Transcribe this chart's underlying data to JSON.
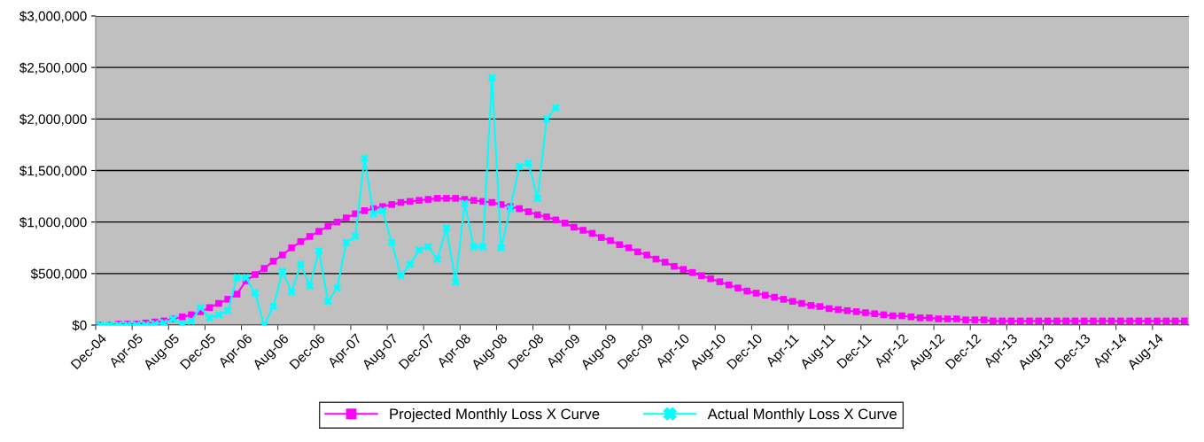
{
  "chart_data": {
    "type": "line",
    "categories": [
      "Dec-04",
      null,
      null,
      null,
      "Apr-05",
      null,
      null,
      null,
      "Aug-05",
      null,
      null,
      null,
      "Dec-05",
      null,
      null,
      null,
      "Apr-06",
      null,
      null,
      null,
      "Aug-06",
      null,
      null,
      null,
      "Dec-06",
      null,
      null,
      null,
      "Apr-07",
      null,
      null,
      null,
      "Aug-07",
      null,
      null,
      null,
      "Dec-07",
      null,
      null,
      null,
      "Apr-08",
      null,
      null,
      null,
      "Aug-08",
      null,
      null,
      null,
      "Dec-08",
      null,
      null,
      null,
      "Apr-09",
      null,
      null,
      null,
      "Aug-09",
      null,
      null,
      null,
      "Dec-09",
      null,
      null,
      null,
      "Apr-10",
      null,
      null,
      null,
      "Aug-10",
      null,
      null,
      null,
      "Dec-10",
      null,
      null,
      null,
      "Apr-11",
      null,
      null,
      null,
      "Aug-11",
      null,
      null,
      null,
      "Dec-11",
      null,
      null,
      null,
      "Apr-12",
      null,
      null,
      null,
      "Aug-12",
      null,
      null,
      null,
      "Dec-12",
      null,
      null,
      null,
      "Apr-13",
      null,
      null,
      null,
      "Aug-13",
      null,
      null,
      null,
      "Dec-13",
      null,
      null,
      null,
      "Apr-14",
      null,
      null,
      null,
      "Aug-14",
      null,
      null,
      null
    ],
    "series": [
      {
        "name": "Projected Monthly Loss X Curve",
        "color": "#ff00ff",
        "marker": "square",
        "values": [
          0,
          0,
          10000,
          10000,
          10000,
          20000,
          30000,
          40000,
          60000,
          80000,
          100000,
          130000,
          170000,
          210000,
          250000,
          300000,
          430000,
          490000,
          550000,
          620000,
          680000,
          750000,
          810000,
          860000,
          910000,
          960000,
          1000000,
          1040000,
          1080000,
          1110000,
          1130000,
          1150000,
          1170000,
          1190000,
          1200000,
          1210000,
          1220000,
          1230000,
          1230000,
          1230000,
          1220000,
          1210000,
          1200000,
          1190000,
          1170000,
          1150000,
          1130000,
          1100000,
          1070000,
          1050000,
          1020000,
          990000,
          950000,
          920000,
          890000,
          850000,
          820000,
          780000,
          750000,
          710000,
          680000,
          640000,
          610000,
          570000,
          540000,
          510000,
          480000,
          450000,
          420000,
          390000,
          360000,
          330000,
          310000,
          290000,
          270000,
          250000,
          230000,
          210000,
          190000,
          180000,
          160000,
          150000,
          140000,
          130000,
          120000,
          110000,
          100000,
          90000,
          90000,
          80000,
          70000,
          70000,
          60000,
          60000,
          60000,
          50000,
          50000,
          50000,
          40000,
          40000,
          40000,
          40000,
          40000,
          40000,
          40000,
          40000,
          40000,
          40000,
          40000,
          40000,
          40000,
          40000,
          40000,
          40000,
          40000,
          40000,
          40000,
          40000,
          40000,
          40000
        ]
      },
      {
        "name": "Actual Monthly Loss X Curve",
        "color": "#00ffff",
        "marker": "cross",
        "values": [
          0,
          0,
          0,
          0,
          0,
          0,
          10000,
          20000,
          60000,
          10000,
          40000,
          170000,
          70000,
          100000,
          140000,
          460000,
          460000,
          310000,
          0,
          180000,
          520000,
          320000,
          590000,
          380000,
          720000,
          230000,
          360000,
          800000,
          860000,
          1620000,
          1080000,
          1110000,
          800000,
          480000,
          590000,
          730000,
          760000,
          640000,
          940000,
          420000,
          1180000,
          760000,
          760000,
          2400000,
          750000,
          1130000,
          1540000,
          1570000,
          1230000,
          2000000,
          2110000,
          null,
          null,
          null,
          null,
          null,
          null,
          null,
          null,
          null,
          null,
          null,
          null,
          null,
          null,
          null,
          null,
          null,
          null,
          null,
          null,
          null,
          null,
          null,
          null,
          null,
          null,
          null,
          null,
          null,
          null,
          null,
          null,
          null,
          null,
          null,
          null,
          null,
          null,
          null,
          null,
          null,
          null,
          null,
          null,
          null,
          null,
          null,
          null,
          null,
          null,
          null,
          null,
          null,
          null,
          null,
          null,
          null,
          null,
          null,
          null,
          null,
          null,
          null,
          null,
          null,
          null,
          null,
          null,
          null
        ]
      }
    ],
    "ylim": [
      0,
      3000000
    ],
    "yticks": [
      {
        "value": 0,
        "label": "$0"
      },
      {
        "value": 500000,
        "label": "$500,000"
      },
      {
        "value": 1000000,
        "label": "$1,000,000"
      },
      {
        "value": 1500000,
        "label": "$1,500,000"
      },
      {
        "value": 2000000,
        "label": "$2,000,000"
      },
      {
        "value": 2500000,
        "label": "$2,500,000"
      },
      {
        "value": 3000000,
        "label": "$3,000,000"
      }
    ],
    "grid": "y",
    "legend": "bottom",
    "line_style": "solid"
  }
}
